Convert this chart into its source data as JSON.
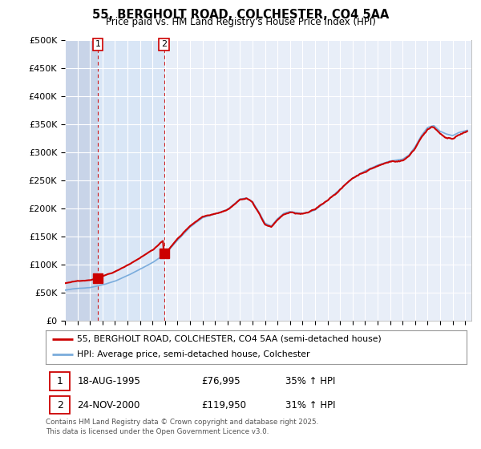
{
  "title_line1": "55, BERGHOLT ROAD, COLCHESTER, CO4 5AA",
  "title_line2": "Price paid vs. HM Land Registry's House Price Index (HPI)",
  "ylim": [
    0,
    500000
  ],
  "yticks": [
    0,
    50000,
    100000,
    150000,
    200000,
    250000,
    300000,
    350000,
    400000,
    450000,
    500000
  ],
  "ytick_labels": [
    "£0",
    "£50K",
    "£100K",
    "£150K",
    "£200K",
    "£250K",
    "£300K",
    "£350K",
    "£400K",
    "£450K",
    "£500K"
  ],
  "red_color": "#cc0000",
  "blue_color": "#7aacdc",
  "purchase1_x": 1995.63,
  "purchase1_price": 76995,
  "purchase2_x": 2000.92,
  "purchase2_price": 119950,
  "legend_red": "55, BERGHOLT ROAD, COLCHESTER, CO4 5AA (semi-detached house)",
  "legend_blue": "HPI: Average price, semi-detached house, Colchester",
  "footnote": "Contains HM Land Registry data © Crown copyright and database right 2025.\nThis data is licensed under the Open Government Licence v3.0.",
  "background_color": "#e8eef8",
  "hatch_color": "#c8d4e8",
  "grid_color": "#ffffff",
  "xlim_left": 1993.0,
  "xlim_right": 2025.5
}
